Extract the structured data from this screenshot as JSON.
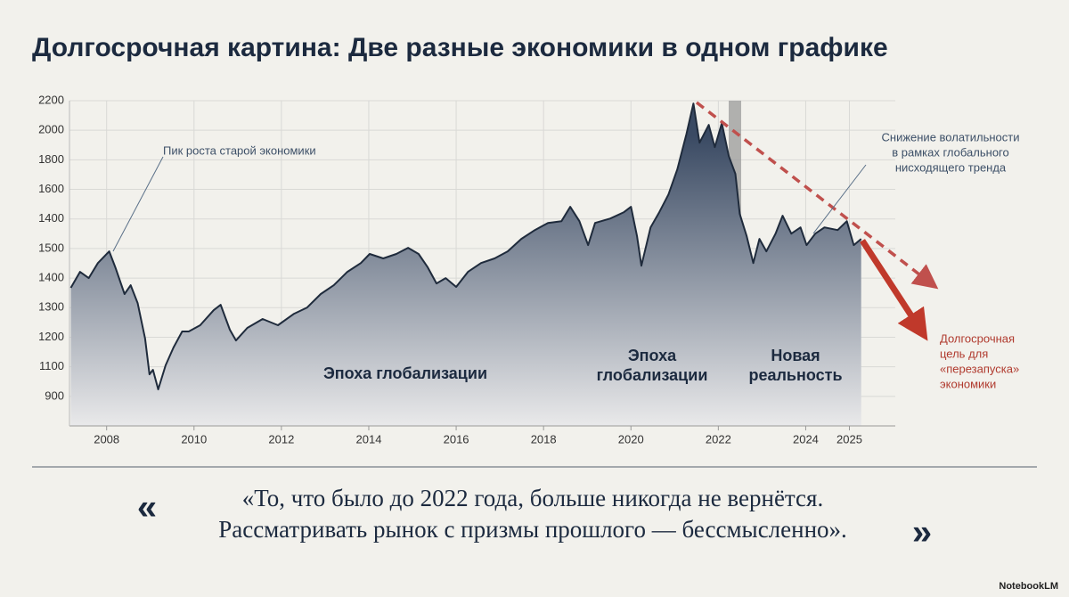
{
  "chart_data": {
    "type": "area",
    "title": "Долгосрочная картина: Две разные экономики в одном графике",
    "color": "#1f2b3c",
    "fill_top": "#3a4a63",
    "fill_bottom": "#e9e9ea",
    "grid": true,
    "x": [
      2007.18,
      2007.39,
      2007.59,
      2007.8,
      2008.06,
      2008.2,
      2008.41,
      2008.55,
      2008.71,
      2008.88,
      2008.98,
      2009.06,
      2009.18,
      2009.35,
      2009.53,
      2009.73,
      2009.88,
      2010.14,
      2010.45,
      2010.61,
      2010.82,
      2010.96,
      2011.22,
      2011.57,
      2011.92,
      2012.29,
      2012.59,
      2012.9,
      2013.2,
      2013.51,
      2013.82,
      2014.02,
      2014.33,
      2014.63,
      2014.9,
      2015.14,
      2015.35,
      2015.55,
      2015.76,
      2016.0,
      2016.27,
      2016.57,
      2016.88,
      2017.18,
      2017.49,
      2017.8,
      2018.1,
      2018.41,
      2018.61,
      2018.82,
      2019.02,
      2019.18,
      2019.53,
      2019.84,
      2020.0,
      2020.14,
      2020.24,
      2020.45,
      2020.65,
      2020.86,
      2021.06,
      2021.27,
      2021.43,
      2021.57,
      2021.78,
      2021.92,
      2022.08,
      2022.24,
      2022.39,
      2022.49,
      2022.65,
      2022.8,
      2022.94,
      2023.1,
      2023.31,
      2023.47,
      2023.67,
      2023.88,
      2024.02,
      2024.22,
      2024.43,
      2024.73,
      2024.94,
      2025.1,
      2025.27
    ],
    "values": [
      934,
      1042,
      1000,
      1102,
      1181,
      1072,
      892,
      952,
      831,
      590,
      349,
      380,
      247,
      410,
      530,
      639,
      639,
      681,
      783,
      819,
      651,
      578,
      663,
      723,
      681,
      759,
      801,
      892,
      952,
      1042,
      1102,
      1163,
      1133,
      1163,
      1205,
      1163,
      1072,
      964,
      1000,
      940,
      1042,
      1102,
      1133,
      1181,
      1265,
      1325,
      1373,
      1385,
      1482,
      1385,
      1223,
      1373,
      1403,
      1446,
      1482,
      1283,
      1084,
      1343,
      1446,
      1566,
      1735,
      1976,
      2181,
      1916,
      2036,
      1886,
      2048,
      1825,
      1705,
      1434,
      1283,
      1102,
      1265,
      1181,
      1301,
      1422,
      1301,
      1343,
      1223,
      1301,
      1343,
      1325,
      1385,
      1223,
      1265
    ],
    "xlim": [
      2007.15,
      2026.05
    ],
    "ylim": [
      0,
      2200
    ],
    "xticks": [
      2008,
      2010,
      2012,
      2014,
      2016,
      2018,
      2020,
      2022,
      2024,
      2025
    ],
    "yticks": [
      2200,
      2000,
      1800,
      1600,
      1400,
      {
        "value": 1200,
        "label": "1500"
      },
      {
        "value": 1000,
        "label": "1400"
      },
      {
        "value": 800,
        "label": "1300"
      },
      {
        "value": 600,
        "label": "1200"
      },
      {
        "value": 400,
        "label": "1100"
      },
      {
        "value": 200,
        "label": "900"
      }
    ],
    "annotations": [
      {
        "lines": [
          "Пик роста старой экономики"
        ]
      },
      {
        "lines": [
          "Эпоха глобализации"
        ]
      },
      {
        "lines": [
          "Эпоха",
          "глобализации"
        ]
      },
      {
        "lines": [
          "Новая",
          "реальность"
        ]
      },
      {
        "lines": [
          "Снижение волатильности",
          "в рамках глобального",
          "нисходящего тренда"
        ]
      },
      {
        "lines": [
          "Долгосрочная",
          "цель для",
          "«перезапуска»",
          "экономики"
        ]
      }
    ]
  },
  "quote": {
    "open_mark": "«",
    "close_mark": "»",
    "lines": [
      "«То, что было до 2022 года, больше никогда не вернётся.",
      "Рассматривать рынок с призмы прошлого — бессмысленно»."
    ]
  },
  "footer": {
    "brand": "NotebookLM"
  }
}
